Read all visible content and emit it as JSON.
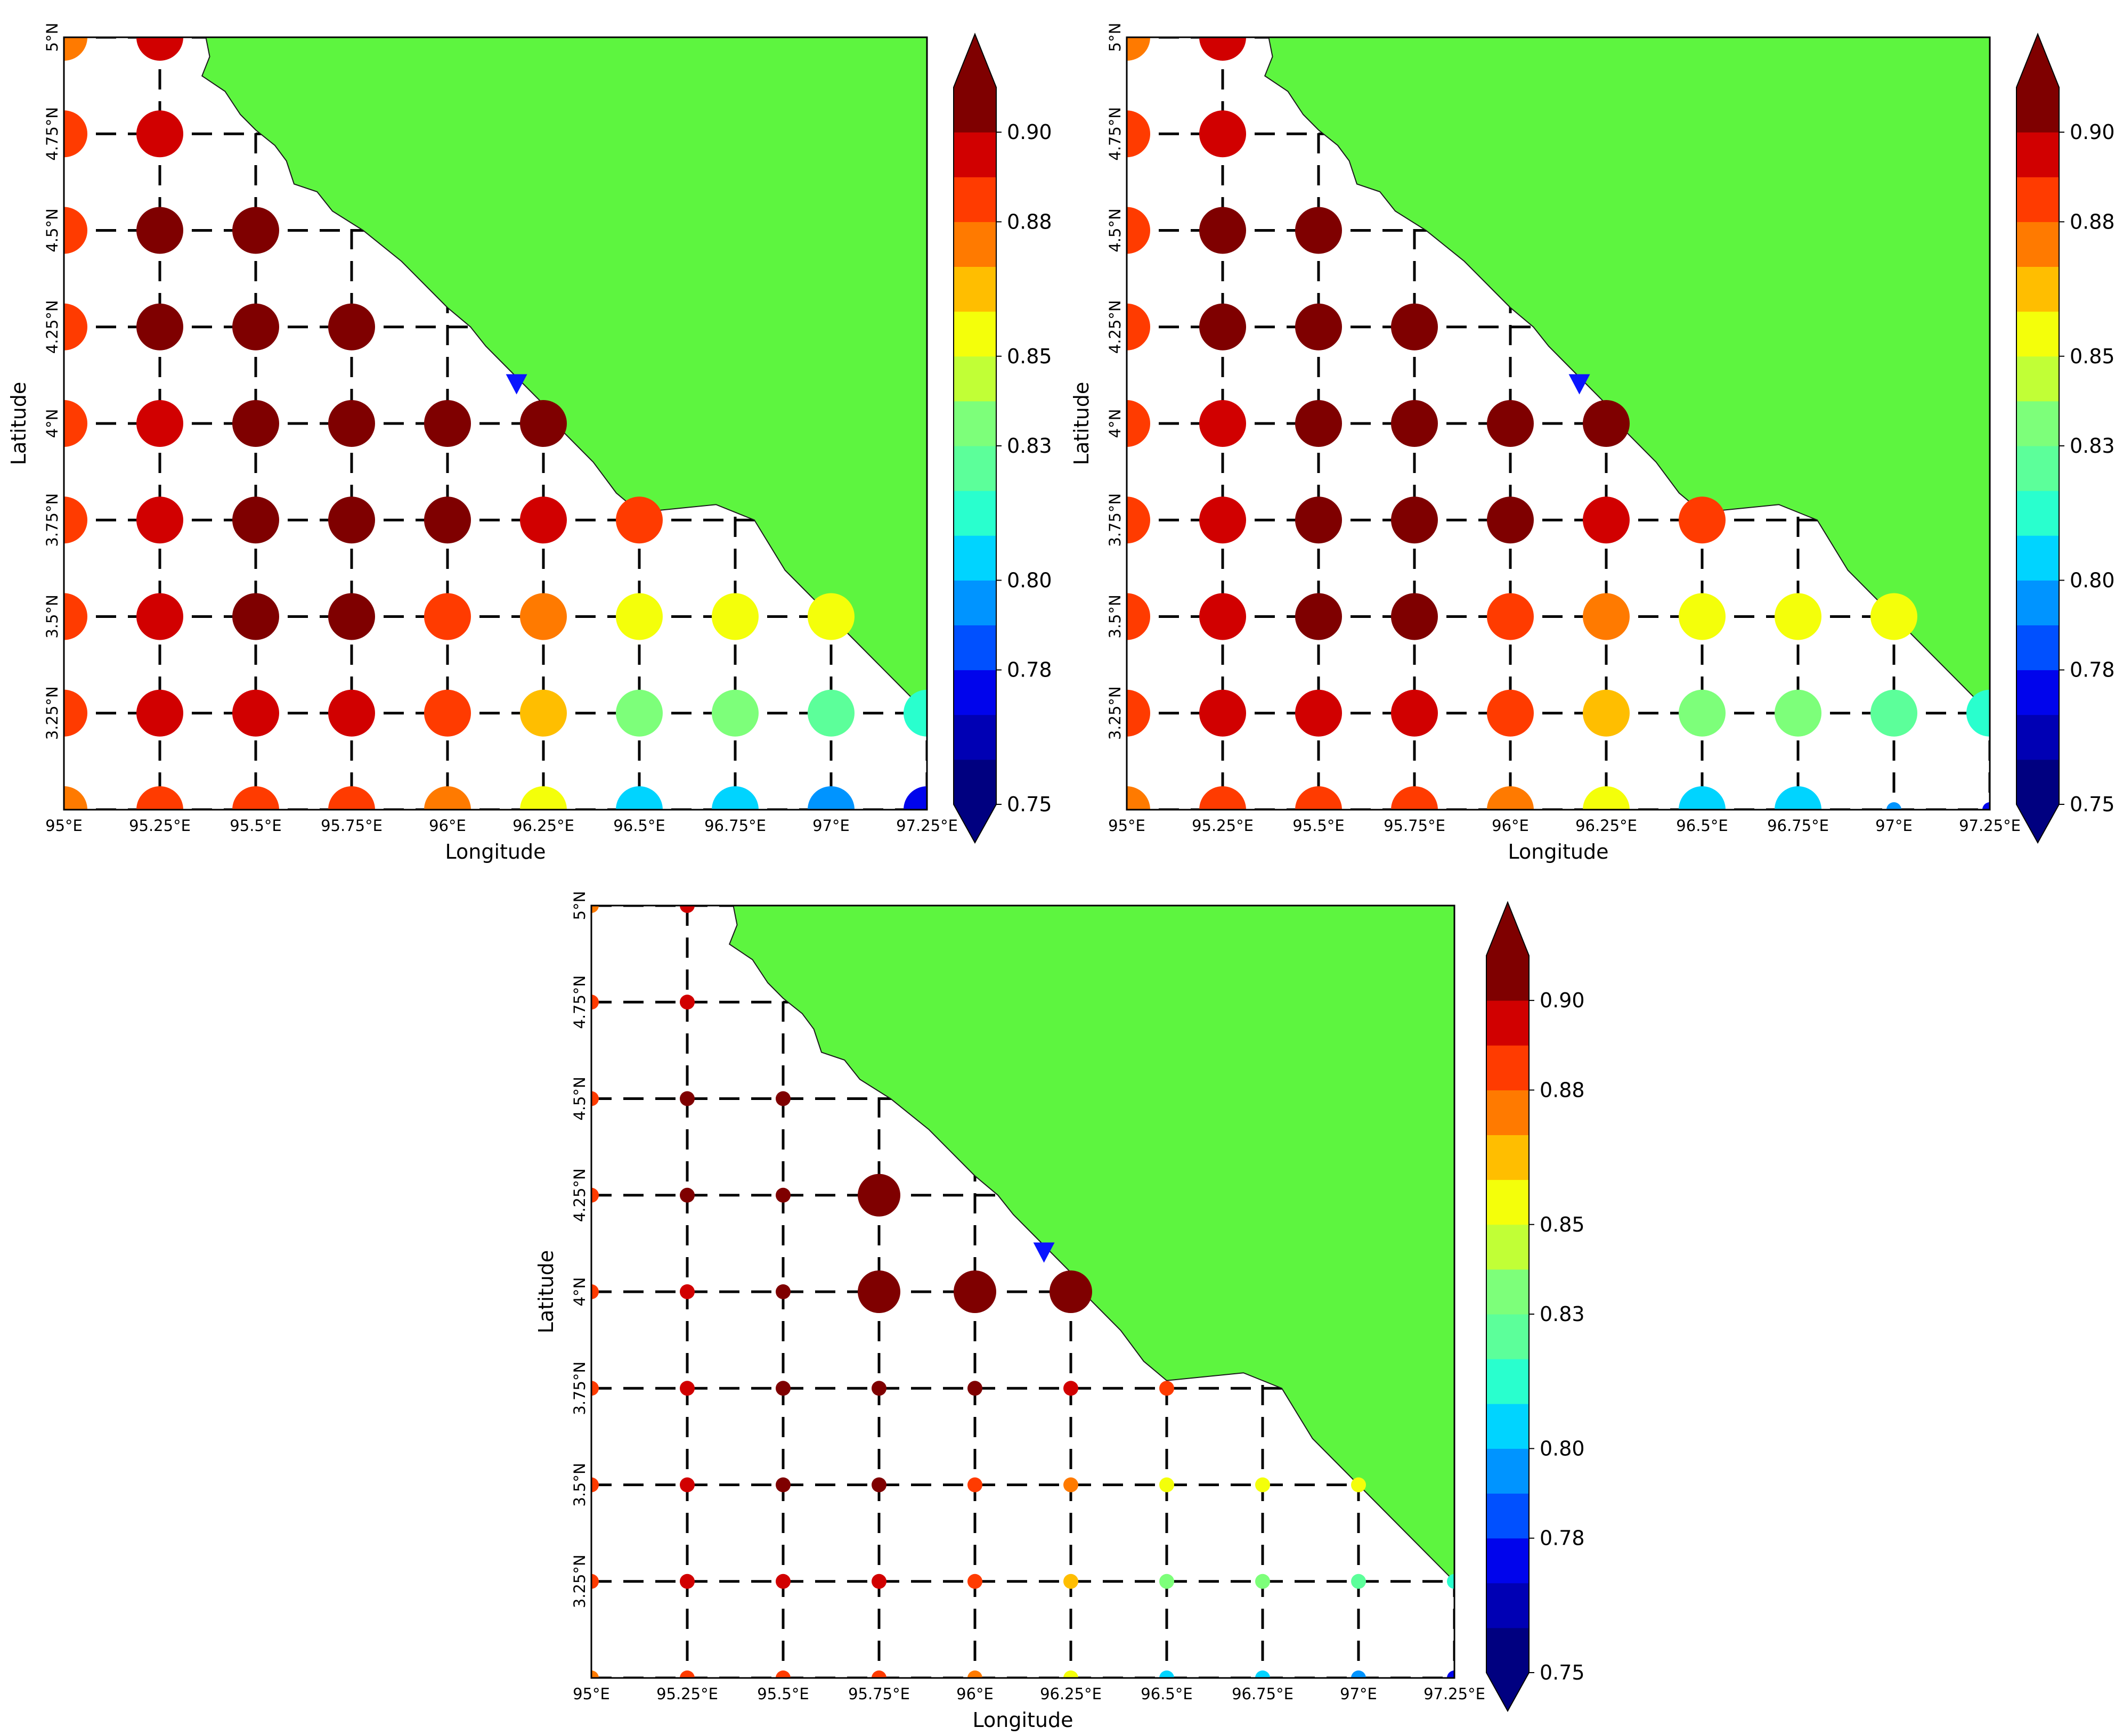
{
  "figure": {
    "panel_count": 3
  },
  "axes": {
    "xlabel": "Longitude",
    "ylabel": "Latitude",
    "xticks": [
      "95°E",
      "95.25°E",
      "95.5°E",
      "95.75°E",
      "96°E",
      "96.25°E",
      "96.5°E",
      "96.75°E",
      "97°E",
      "97.25°E"
    ],
    "yticks": [
      "3.25°N",
      "3.5°N",
      "3.75°N",
      "4°N",
      "4.25°N",
      "4.5°N",
      "4.75°N",
      "5°N"
    ],
    "xlim": [
      95.0,
      97.25
    ],
    "ylim": [
      3.0,
      5.0
    ],
    "grid": "dashed lines through grid points",
    "land_color": "#5df53f",
    "marker_color": "#0a14ff"
  },
  "colorbar": {
    "ticks": [
      "0.90",
      "0.88",
      "0.85",
      "0.83",
      "0.80",
      "0.78",
      "0.75"
    ],
    "range": [
      0.75,
      0.91
    ],
    "extend": "both",
    "colors": [
      "#000080",
      "#0000b4",
      "#0004ec",
      "#0050ff",
      "#0094ff",
      "#00d4ff",
      "#29ffce",
      "#5cff9a",
      "#7dff7a",
      "#c1ff36",
      "#f4ff0a",
      "#ffbe00",
      "#ff7a00",
      "#ff3b00",
      "#d10000",
      "#7f0000"
    ],
    "above_color": "#7f0000",
    "below_color": "#000080"
  },
  "chart_data": [
    {
      "type": "scatter",
      "panel": "top-left",
      "xlabel": "Longitude",
      "ylabel": "Latitude",
      "marker_location": [
        96.18,
        4.1
      ],
      "points": [
        {
          "lon": 95.0,
          "lat": 5.0,
          "value": 0.88
        },
        {
          "lon": 95.25,
          "lat": 5.0,
          "value": 0.895
        },
        {
          "lon": 95.0,
          "lat": 4.75,
          "value": 0.885
        },
        {
          "lon": 95.25,
          "lat": 4.75,
          "value": 0.895
        },
        {
          "lon": 95.0,
          "lat": 4.5,
          "value": 0.885
        },
        {
          "lon": 95.25,
          "lat": 4.5,
          "value": 0.9
        },
        {
          "lon": 95.5,
          "lat": 4.5,
          "value": 0.9
        },
        {
          "lon": 95.0,
          "lat": 4.25,
          "value": 0.885
        },
        {
          "lon": 95.25,
          "lat": 4.25,
          "value": 0.9
        },
        {
          "lon": 95.5,
          "lat": 4.25,
          "value": 0.9
        },
        {
          "lon": 95.75,
          "lat": 4.25,
          "value": 0.915
        },
        {
          "lon": 95.0,
          "lat": 4.0,
          "value": 0.885
        },
        {
          "lon": 95.25,
          "lat": 4.0,
          "value": 0.895
        },
        {
          "lon": 95.5,
          "lat": 4.0,
          "value": 0.9
        },
        {
          "lon": 95.75,
          "lat": 4.0,
          "value": 0.915
        },
        {
          "lon": 96.0,
          "lat": 4.0,
          "value": 0.915
        },
        {
          "lon": 96.25,
          "lat": 4.0,
          "value": 0.915
        },
        {
          "lon": 95.0,
          "lat": 3.75,
          "value": 0.885
        },
        {
          "lon": 95.25,
          "lat": 3.75,
          "value": 0.895
        },
        {
          "lon": 95.5,
          "lat": 3.75,
          "value": 0.9
        },
        {
          "lon": 95.75,
          "lat": 3.75,
          "value": 0.9
        },
        {
          "lon": 96.0,
          "lat": 3.75,
          "value": 0.9
        },
        {
          "lon": 96.25,
          "lat": 3.75,
          "value": 0.895
        },
        {
          "lon": 96.5,
          "lat": 3.75,
          "value": 0.885
        },
        {
          "lon": 95.0,
          "lat": 3.5,
          "value": 0.885
        },
        {
          "lon": 95.25,
          "lat": 3.5,
          "value": 0.895
        },
        {
          "lon": 95.5,
          "lat": 3.5,
          "value": 0.9
        },
        {
          "lon": 95.75,
          "lat": 3.5,
          "value": 0.9
        },
        {
          "lon": 96.0,
          "lat": 3.5,
          "value": 0.885
        },
        {
          "lon": 96.25,
          "lat": 3.5,
          "value": 0.875
        },
        {
          "lon": 96.5,
          "lat": 3.5,
          "value": 0.855
        },
        {
          "lon": 96.75,
          "lat": 3.5,
          "value": 0.855
        },
        {
          "lon": 97.0,
          "lat": 3.5,
          "value": 0.855
        },
        {
          "lon": 95.0,
          "lat": 3.25,
          "value": 0.885
        },
        {
          "lon": 95.25,
          "lat": 3.25,
          "value": 0.895
        },
        {
          "lon": 95.5,
          "lat": 3.25,
          "value": 0.895
        },
        {
          "lon": 95.75,
          "lat": 3.25,
          "value": 0.895
        },
        {
          "lon": 96.0,
          "lat": 3.25,
          "value": 0.885
        },
        {
          "lon": 96.25,
          "lat": 3.25,
          "value": 0.865
        },
        {
          "lon": 96.5,
          "lat": 3.25,
          "value": 0.84
        },
        {
          "lon": 96.75,
          "lat": 3.25,
          "value": 0.84
        },
        {
          "lon": 97.0,
          "lat": 3.25,
          "value": 0.83
        },
        {
          "lon": 97.25,
          "lat": 3.25,
          "value": 0.815
        },
        {
          "lon": 95.0,
          "lat": 3.0,
          "value": 0.875
        },
        {
          "lon": 95.25,
          "lat": 3.0,
          "value": 0.885
        },
        {
          "lon": 95.5,
          "lat": 3.0,
          "value": 0.885
        },
        {
          "lon": 95.75,
          "lat": 3.0,
          "value": 0.885
        },
        {
          "lon": 96.0,
          "lat": 3.0,
          "value": 0.875
        },
        {
          "lon": 96.25,
          "lat": 3.0,
          "value": 0.855
        },
        {
          "lon": 96.5,
          "lat": 3.0,
          "value": 0.805
        },
        {
          "lon": 96.75,
          "lat": 3.0,
          "value": 0.805
        },
        {
          "lon": 97.0,
          "lat": 3.0,
          "value": 0.79
        },
        {
          "lon": 97.25,
          "lat": 3.0,
          "value": 0.775
        }
      ]
    },
    {
      "type": "scatter",
      "panel": "top-right",
      "xlabel": "Longitude",
      "ylabel": "Latitude",
      "marker_location": [
        96.18,
        4.1
      ],
      "points": [
        {
          "lon": 95.0,
          "lat": 5.0,
          "value": 0.88
        },
        {
          "lon": 95.25,
          "lat": 5.0,
          "value": 0.895
        },
        {
          "lon": 95.0,
          "lat": 4.75,
          "value": 0.885
        },
        {
          "lon": 95.25,
          "lat": 4.75,
          "value": 0.895
        },
        {
          "lon": 95.0,
          "lat": 4.5,
          "value": 0.885
        },
        {
          "lon": 95.25,
          "lat": 4.5,
          "value": 0.9
        },
        {
          "lon": 95.5,
          "lat": 4.5,
          "value": 0.9
        },
        {
          "lon": 95.0,
          "lat": 4.25,
          "value": 0.885
        },
        {
          "lon": 95.25,
          "lat": 4.25,
          "value": 0.9
        },
        {
          "lon": 95.5,
          "lat": 4.25,
          "value": 0.9
        },
        {
          "lon": 95.75,
          "lat": 4.25,
          "value": 0.915
        },
        {
          "lon": 95.0,
          "lat": 4.0,
          "value": 0.885
        },
        {
          "lon": 95.25,
          "lat": 4.0,
          "value": 0.895
        },
        {
          "lon": 95.5,
          "lat": 4.0,
          "value": 0.9
        },
        {
          "lon": 95.75,
          "lat": 4.0,
          "value": 0.915
        },
        {
          "lon": 96.0,
          "lat": 4.0,
          "value": 0.915
        },
        {
          "lon": 96.25,
          "lat": 4.0,
          "value": 0.915
        },
        {
          "lon": 95.0,
          "lat": 3.75,
          "value": 0.885
        },
        {
          "lon": 95.25,
          "lat": 3.75,
          "value": 0.895
        },
        {
          "lon": 95.5,
          "lat": 3.75,
          "value": 0.9
        },
        {
          "lon": 95.75,
          "lat": 3.75,
          "value": 0.9
        },
        {
          "lon": 96.0,
          "lat": 3.75,
          "value": 0.9
        },
        {
          "lon": 96.25,
          "lat": 3.75,
          "value": 0.895
        },
        {
          "lon": 96.5,
          "lat": 3.75,
          "value": 0.885
        },
        {
          "lon": 95.0,
          "lat": 3.5,
          "value": 0.885
        },
        {
          "lon": 95.25,
          "lat": 3.5,
          "value": 0.895
        },
        {
          "lon": 95.5,
          "lat": 3.5,
          "value": 0.9
        },
        {
          "lon": 95.75,
          "lat": 3.5,
          "value": 0.9
        },
        {
          "lon": 96.0,
          "lat": 3.5,
          "value": 0.885
        },
        {
          "lon": 96.25,
          "lat": 3.5,
          "value": 0.875
        },
        {
          "lon": 96.5,
          "lat": 3.5,
          "value": 0.855
        },
        {
          "lon": 96.75,
          "lat": 3.5,
          "value": 0.855
        },
        {
          "lon": 97.0,
          "lat": 3.5,
          "value": 0.855
        },
        {
          "lon": 95.0,
          "lat": 3.25,
          "value": 0.885
        },
        {
          "lon": 95.25,
          "lat": 3.25,
          "value": 0.895
        },
        {
          "lon": 95.5,
          "lat": 3.25,
          "value": 0.895
        },
        {
          "lon": 95.75,
          "lat": 3.25,
          "value": 0.895
        },
        {
          "lon": 96.0,
          "lat": 3.25,
          "value": 0.885
        },
        {
          "lon": 96.25,
          "lat": 3.25,
          "value": 0.865
        },
        {
          "lon": 96.5,
          "lat": 3.25,
          "value": 0.84
        },
        {
          "lon": 96.75,
          "lat": 3.25,
          "value": 0.84
        },
        {
          "lon": 97.0,
          "lat": 3.25,
          "value": 0.83
        },
        {
          "lon": 97.25,
          "lat": 3.25,
          "value": 0.815
        },
        {
          "lon": 95.0,
          "lat": 3.0,
          "value": 0.875
        },
        {
          "lon": 95.25,
          "lat": 3.0,
          "value": 0.885
        },
        {
          "lon": 95.5,
          "lat": 3.0,
          "value": 0.885
        },
        {
          "lon": 95.75,
          "lat": 3.0,
          "value": 0.885
        },
        {
          "lon": 96.0,
          "lat": 3.0,
          "value": 0.875
        },
        {
          "lon": 96.25,
          "lat": 3.0,
          "value": 0.855
        },
        {
          "lon": 96.5,
          "lat": 3.0,
          "value": 0.805
        },
        {
          "lon": 96.75,
          "lat": 3.0,
          "value": 0.805
        },
        {
          "lon": 97.0,
          "lat": 3.0,
          "value": 0.79
        },
        {
          "lon": 97.25,
          "lat": 3.0,
          "value": 0.775
        }
      ]
    },
    {
      "type": "scatter",
      "panel": "bottom",
      "xlabel": "Longitude",
      "ylabel": "Latitude",
      "marker_location": [
        96.18,
        4.1
      ],
      "points": [
        {
          "lon": 95.0,
          "lat": 5.0,
          "value": 0.88
        },
        {
          "lon": 95.25,
          "lat": 5.0,
          "value": 0.895
        },
        {
          "lon": 95.0,
          "lat": 4.75,
          "value": 0.885
        },
        {
          "lon": 95.25,
          "lat": 4.75,
          "value": 0.895
        },
        {
          "lon": 95.0,
          "lat": 4.5,
          "value": 0.885
        },
        {
          "lon": 95.25,
          "lat": 4.5,
          "value": 0.9
        },
        {
          "lon": 95.5,
          "lat": 4.5,
          "value": 0.9
        },
        {
          "lon": 95.0,
          "lat": 4.25,
          "value": 0.885
        },
        {
          "lon": 95.25,
          "lat": 4.25,
          "value": 0.9
        },
        {
          "lon": 95.5,
          "lat": 4.25,
          "value": 0.9
        },
        {
          "lon": 95.75,
          "lat": 4.25,
          "value": 0.915
        },
        {
          "lon": 95.0,
          "lat": 4.0,
          "value": 0.885
        },
        {
          "lon": 95.25,
          "lat": 4.0,
          "value": 0.895
        },
        {
          "lon": 95.5,
          "lat": 4.0,
          "value": 0.9
        },
        {
          "lon": 95.75,
          "lat": 4.0,
          "value": 0.915
        },
        {
          "lon": 96.0,
          "lat": 4.0,
          "value": 0.915
        },
        {
          "lon": 96.25,
          "lat": 4.0,
          "value": 0.915
        },
        {
          "lon": 95.0,
          "lat": 3.75,
          "value": 0.885
        },
        {
          "lon": 95.25,
          "lat": 3.75,
          "value": 0.895
        },
        {
          "lon": 95.5,
          "lat": 3.75,
          "value": 0.9
        },
        {
          "lon": 95.75,
          "lat": 3.75,
          "value": 0.9
        },
        {
          "lon": 96.0,
          "lat": 3.75,
          "value": 0.9
        },
        {
          "lon": 96.25,
          "lat": 3.75,
          "value": 0.895
        },
        {
          "lon": 96.5,
          "lat": 3.75,
          "value": 0.885
        },
        {
          "lon": 95.0,
          "lat": 3.5,
          "value": 0.885
        },
        {
          "lon": 95.25,
          "lat": 3.5,
          "value": 0.895
        },
        {
          "lon": 95.5,
          "lat": 3.5,
          "value": 0.9
        },
        {
          "lon": 95.75,
          "lat": 3.5,
          "value": 0.9
        },
        {
          "lon": 96.0,
          "lat": 3.5,
          "value": 0.885
        },
        {
          "lon": 96.25,
          "lat": 3.5,
          "value": 0.875
        },
        {
          "lon": 96.5,
          "lat": 3.5,
          "value": 0.855
        },
        {
          "lon": 96.75,
          "lat": 3.5,
          "value": 0.855
        },
        {
          "lon": 97.0,
          "lat": 3.5,
          "value": 0.855
        },
        {
          "lon": 95.0,
          "lat": 3.25,
          "value": 0.885
        },
        {
          "lon": 95.25,
          "lat": 3.25,
          "value": 0.895
        },
        {
          "lon": 95.5,
          "lat": 3.25,
          "value": 0.895
        },
        {
          "lon": 95.75,
          "lat": 3.25,
          "value": 0.895
        },
        {
          "lon": 96.0,
          "lat": 3.25,
          "value": 0.885
        },
        {
          "lon": 96.25,
          "lat": 3.25,
          "value": 0.865
        },
        {
          "lon": 96.5,
          "lat": 3.25,
          "value": 0.84
        },
        {
          "lon": 96.75,
          "lat": 3.25,
          "value": 0.84
        },
        {
          "lon": 97.0,
          "lat": 3.25,
          "value": 0.83
        },
        {
          "lon": 97.25,
          "lat": 3.25,
          "value": 0.815
        },
        {
          "lon": 95.0,
          "lat": 3.0,
          "value": 0.875
        },
        {
          "lon": 95.25,
          "lat": 3.0,
          "value": 0.885
        },
        {
          "lon": 95.5,
          "lat": 3.0,
          "value": 0.885
        },
        {
          "lon": 95.75,
          "lat": 3.0,
          "value": 0.885
        },
        {
          "lon": 96.0,
          "lat": 3.0,
          "value": 0.875
        },
        {
          "lon": 96.25,
          "lat": 3.0,
          "value": 0.855
        },
        {
          "lon": 96.5,
          "lat": 3.0,
          "value": 0.805
        },
        {
          "lon": 96.75,
          "lat": 3.0,
          "value": 0.805
        },
        {
          "lon": 97.0,
          "lat": 3.0,
          "value": 0.79
        },
        {
          "lon": 97.25,
          "lat": 3.0,
          "value": 0.775
        }
      ]
    }
  ]
}
